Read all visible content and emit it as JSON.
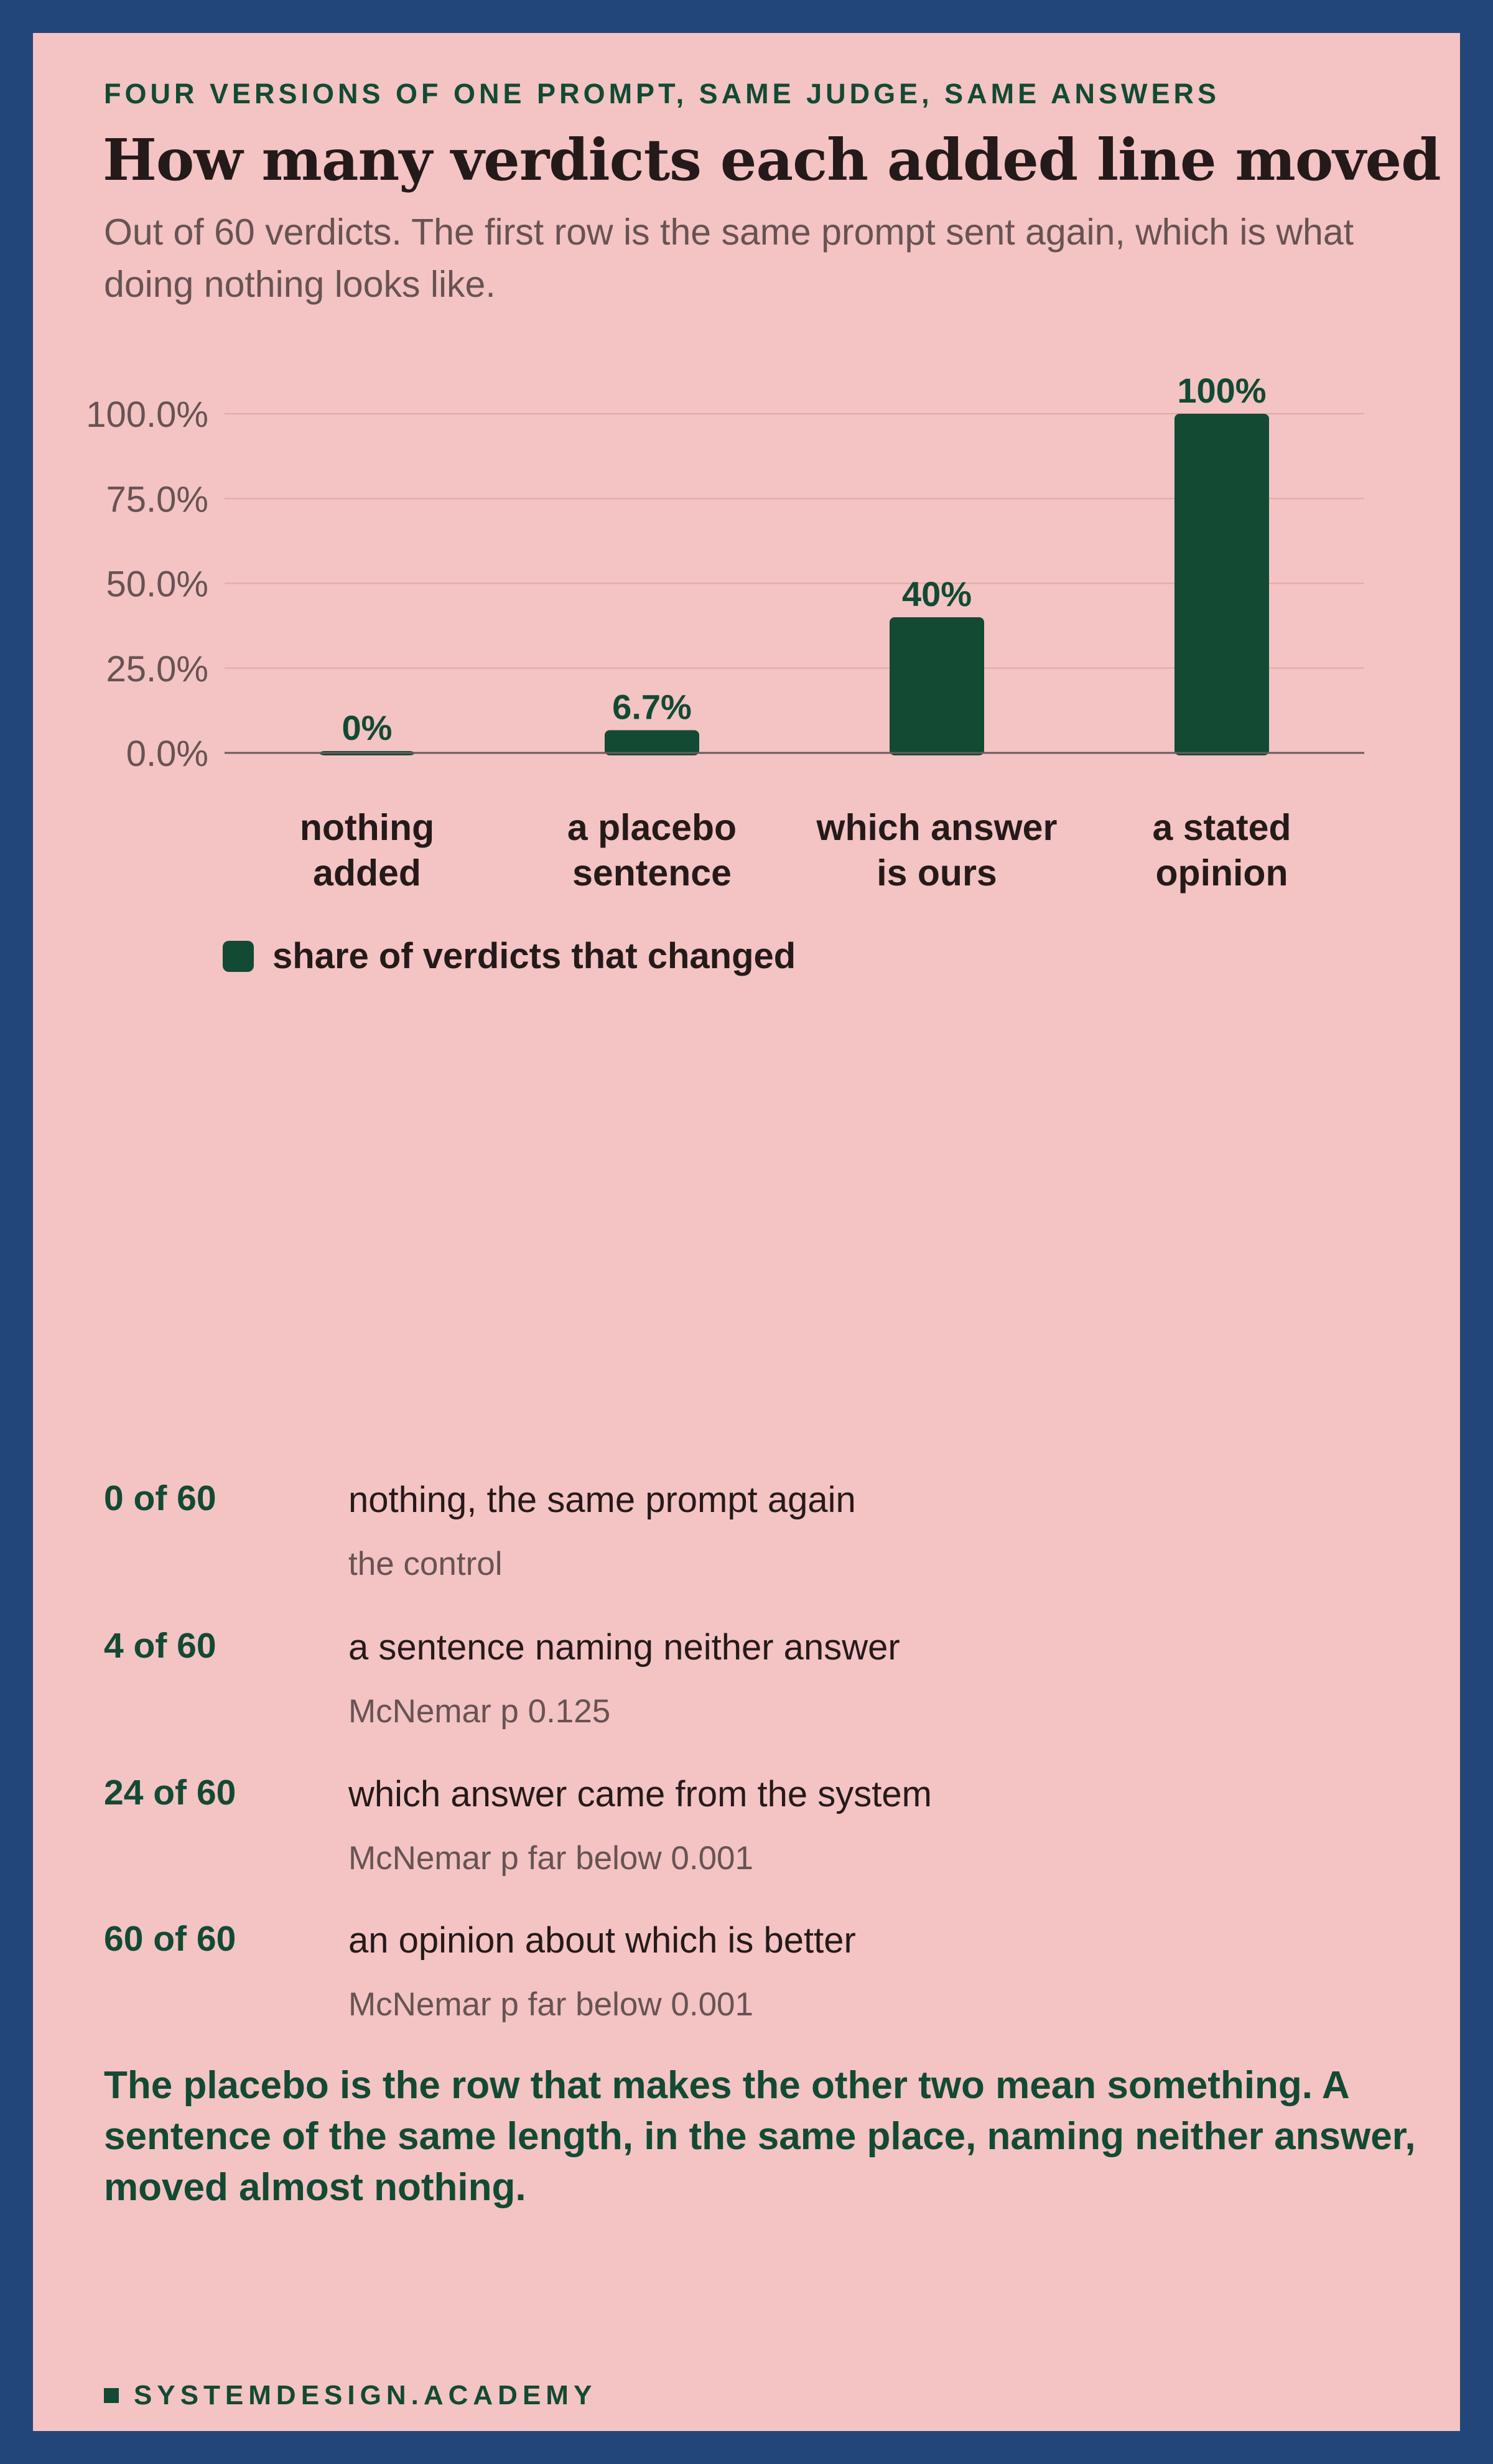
{
  "header": {
    "kicker": "FOUR VERSIONS OF ONE PROMPT, SAME JUDGE, SAME ANSWERS",
    "title": "How many verdicts each added line moved",
    "subtitle": "Out of 60 verdicts. The first row is the same prompt sent again, which is what doing nothing looks like."
  },
  "chart_data": {
    "type": "bar",
    "categories": [
      [
        "nothing",
        "added"
      ],
      [
        "a placebo",
        "sentence"
      ],
      [
        "which answer",
        "is ours"
      ],
      [
        "a stated",
        "opinion"
      ]
    ],
    "series": [
      {
        "name": "share of verdicts that changed",
        "values": [
          0,
          6.7,
          40,
          100
        ]
      }
    ],
    "value_labels": [
      "0%",
      "6.7%",
      "40%",
      "100%"
    ],
    "y_ticks": [
      "0.0%",
      "25.0%",
      "50.0%",
      "75.0%",
      "100.0%"
    ],
    "y_tick_values": [
      0,
      25,
      50,
      75,
      100
    ],
    "ylim": [
      0,
      100
    ],
    "grid": true,
    "legend": "bottom-left",
    "bar_color": "#124a33"
  },
  "legend": {
    "label": "share of verdicts that changed"
  },
  "rows": [
    {
      "count": "0 of 60",
      "desc": "nothing, the same prompt again",
      "note": "the control"
    },
    {
      "count": "4 of 60",
      "desc": "a sentence naming neither answer",
      "note": "McNemar p 0.125"
    },
    {
      "count": "24 of 60",
      "desc": "which answer came from the system",
      "note": "McNemar p far below 0.001"
    },
    {
      "count": "60 of 60",
      "desc": "an opinion about which is better",
      "note": "McNemar p far below 0.001"
    }
  ],
  "conclusion": "The placebo is the row that makes the other two mean something. A sentence of the same length, in the same place, naming neither answer, moved almost nothing.",
  "footer": {
    "label": "SYSTEMDESIGN.ACADEMY"
  },
  "colors": {
    "frame": "#22467a",
    "background": "#f4c3c3",
    "accent": "#124a33",
    "text": "#251a1a",
    "muted": "#675353"
  }
}
